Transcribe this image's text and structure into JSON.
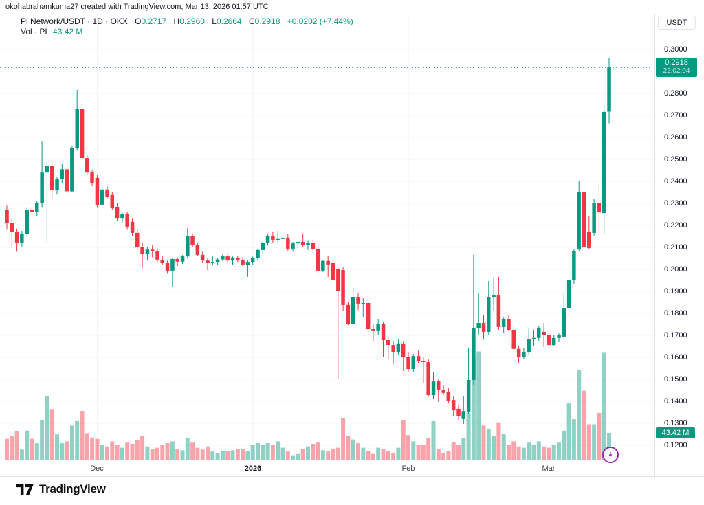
{
  "attribution": "okohabrahamkuma27 created with TradingView.com, Mar 13, 2026 01:57 UTC",
  "legend": {
    "symbol_text": "Pi Network/USDT · 1D · OKX",
    "ohlc": {
      "o_label": "O",
      "o_value": "0.2717",
      "h_label": "H",
      "h_value": "0.2960",
      "l_label": "L",
      "l_value": "0.2664",
      "c_label": "C",
      "c_value": "0.2918",
      "change": "+0.0202 (+7.44%)"
    },
    "volume_row": {
      "label": "Vol · PI",
      "value": "43.42 M"
    }
  },
  "axis": {
    "currency_button": "USDT",
    "price_ticks": [
      "0.3000",
      "0.2800",
      "0.2700",
      "0.2600",
      "0.2500",
      "0.2400",
      "0.2300",
      "0.2200",
      "0.2100",
      "0.2000",
      "0.1900",
      "0.1800",
      "0.1700",
      "0.1600",
      "0.1500",
      "0.1400",
      "0.1300",
      "0.1200"
    ],
    "price_label": {
      "value": "0.2918",
      "countdown": "22:02:04"
    },
    "volume_label": "43.42 M"
  },
  "footer": {
    "logo_text": "TradingView"
  },
  "colors": {
    "up": "#089981",
    "down": "#f23645",
    "vol_up": "rgba(8,153,129,0.45)",
    "vol_down": "rgba(242,54,69,0.45)",
    "grid": "#f0f3fa",
    "badge": "#089981",
    "flash_purple": "#9c27b0"
  },
  "chart_data": {
    "type": "candlestick+volume",
    "symbol": "Pi Network/USDT",
    "interval": "1D",
    "exchange": "OKX",
    "start_date": "2025-11-13",
    "end_date": "2026-03-13",
    "last": {
      "open": 0.2717,
      "high": 0.296,
      "low": 0.2664,
      "close": 0.2918,
      "change_abs": 0.0202,
      "change_pct": 7.44,
      "volume_m": 43.42
    },
    "y_axis": {
      "labeled_min": 0.12,
      "labeled_max": 0.3,
      "gridline_step": 0.01,
      "legend_position": "right",
      "grid": true
    },
    "volume_axis": {
      "unit": "M",
      "last_volume_m": 43.42
    },
    "x_axis": {
      "month_ticks": [
        {
          "label": "Dec",
          "day_index": 18,
          "bold": false
        },
        {
          "label": "2026",
          "day_index": 49,
          "bold": true
        },
        {
          "label": "Feb",
          "day_index": 80,
          "bold": false
        },
        {
          "label": "Mar",
          "day_index": 108,
          "bold": false
        }
      ]
    },
    "candles": [
      [
        0.227,
        0.229,
        0.218,
        0.221
      ],
      [
        0.221,
        0.223,
        0.21,
        0.217
      ],
      [
        0.217,
        0.2185,
        0.208,
        0.212
      ],
      [
        0.212,
        0.2175,
        0.21,
        0.216
      ],
      [
        0.216,
        0.228,
        0.215,
        0.227
      ],
      [
        0.227,
        0.233,
        0.222,
        0.226
      ],
      [
        0.226,
        0.231,
        0.224,
        0.23
      ],
      [
        0.23,
        0.2584,
        0.228,
        0.244
      ],
      [
        0.244,
        0.249,
        0.2125,
        0.247
      ],
      [
        0.247,
        0.2484,
        0.232,
        0.236
      ],
      [
        0.236,
        0.242,
        0.234,
        0.241
      ],
      [
        0.241,
        0.248,
        0.239,
        0.2455
      ],
      [
        0.2455,
        0.2478,
        0.234,
        0.2355
      ],
      [
        0.2355,
        0.256,
        0.235,
        0.255
      ],
      [
        0.255,
        0.2816,
        0.254,
        0.2731
      ],
      [
        0.2731,
        0.2841,
        0.25,
        0.2506
      ],
      [
        0.2506,
        0.252,
        0.243,
        0.244
      ],
      [
        0.244,
        0.245,
        0.238,
        0.2391
      ],
      [
        0.2416,
        0.243,
        0.228,
        0.2294
      ],
      [
        0.2294,
        0.237,
        0.229,
        0.2363
      ],
      [
        0.2363,
        0.238,
        0.232,
        0.2331
      ],
      [
        0.2338,
        0.235,
        0.227,
        0.2278
      ],
      [
        0.2284,
        0.23,
        0.222,
        0.2231
      ],
      [
        0.2231,
        0.226,
        0.221,
        0.225
      ],
      [
        0.225,
        0.226,
        0.218,
        0.2194
      ],
      [
        0.2216,
        0.223,
        0.215,
        0.2166
      ],
      [
        0.2166,
        0.218,
        0.209,
        0.21
      ],
      [
        0.21,
        0.212,
        0.2006,
        0.207
      ],
      [
        0.207,
        0.21,
        0.204,
        0.209
      ],
      [
        0.209,
        0.211,
        0.2055,
        0.2084
      ],
      [
        0.2084,
        0.2095,
        0.2035,
        0.2044
      ],
      [
        0.2044,
        0.206,
        0.202,
        0.2028
      ],
      [
        0.2028,
        0.204,
        0.198,
        0.1991
      ],
      [
        0.1991,
        0.205,
        0.1919,
        0.2047
      ],
      [
        0.2047,
        0.2055,
        0.2015,
        0.2035
      ],
      [
        0.2035,
        0.2065,
        0.2025,
        0.2059
      ],
      [
        0.2059,
        0.2188,
        0.205,
        0.2153
      ],
      [
        0.2153,
        0.216,
        0.21,
        0.211
      ],
      [
        0.211,
        0.212,
        0.206,
        0.2066
      ],
      [
        0.2066,
        0.208,
        0.2028,
        0.204
      ],
      [
        0.204,
        0.205,
        0.1997,
        0.2028
      ],
      [
        0.2028,
        0.206,
        0.2018,
        0.2034
      ],
      [
        0.2034,
        0.2052,
        0.202,
        0.2045
      ],
      [
        0.2045,
        0.207,
        0.2038,
        0.2059
      ],
      [
        0.2059,
        0.2072,
        0.203,
        0.204
      ],
      [
        0.204,
        0.2058,
        0.2022,
        0.2053
      ],
      [
        0.2053,
        0.2062,
        0.203,
        0.2044
      ],
      [
        0.2044,
        0.2056,
        0.2016,
        0.2022
      ],
      [
        0.2022,
        0.2042,
        0.1966,
        0.2031
      ],
      [
        0.2031,
        0.2058,
        0.2022,
        0.205
      ],
      [
        0.205,
        0.2092,
        0.204,
        0.2088
      ],
      [
        0.2088,
        0.2128,
        0.2072,
        0.2122
      ],
      [
        0.2122,
        0.2163,
        0.2108,
        0.2153
      ],
      [
        0.2153,
        0.217,
        0.212,
        0.2131
      ],
      [
        0.2131,
        0.2175,
        0.2118,
        0.2138
      ],
      [
        0.2138,
        0.2216,
        0.2125,
        0.2144
      ],
      [
        0.2144,
        0.216,
        0.2084,
        0.2094
      ],
      [
        0.2094,
        0.2125,
        0.208,
        0.2118
      ],
      [
        0.2118,
        0.214,
        0.2095,
        0.2125
      ],
      [
        0.2125,
        0.2163,
        0.21,
        0.211
      ],
      [
        0.211,
        0.213,
        0.2088,
        0.2122
      ],
      [
        0.2122,
        0.2135,
        0.2075,
        0.2091
      ],
      [
        0.2094,
        0.211,
        0.1975,
        0.1994
      ],
      [
        0.1994,
        0.2042,
        0.1988,
        0.2038
      ],
      [
        0.2038,
        0.206,
        0.1966,
        0.2022
      ],
      [
        0.2028,
        0.2042,
        0.194,
        0.1953
      ],
      [
        0.2,
        0.2013,
        0.1503,
        0.1903
      ],
      [
        0.1997,
        0.2009,
        0.181,
        0.1838
      ],
      [
        0.1838,
        0.1852,
        0.1747,
        0.1753
      ],
      [
        0.1753,
        0.1916,
        0.1748,
        0.1875
      ],
      [
        0.1875,
        0.1894,
        0.1815,
        0.1844
      ],
      [
        0.1844,
        0.1872,
        0.1784,
        0.1847
      ],
      [
        0.1847,
        0.1856,
        0.1706,
        0.1728
      ],
      [
        0.1728,
        0.1752,
        0.1672,
        0.1719
      ],
      [
        0.1719,
        0.1772,
        0.1703,
        0.1753
      ],
      [
        0.1753,
        0.1759,
        0.16,
        0.1678
      ],
      [
        0.1678,
        0.1691,
        0.1594,
        0.1656
      ],
      [
        0.1656,
        0.1672,
        0.1569,
        0.1625
      ],
      [
        0.1625,
        0.1681,
        0.1609,
        0.1663
      ],
      [
        0.1663,
        0.1672,
        0.1538,
        0.16
      ],
      [
        0.16,
        0.1622,
        0.1535,
        0.1547
      ],
      [
        0.1547,
        0.1616,
        0.1531,
        0.1606
      ],
      [
        0.1606,
        0.1631,
        0.1572,
        0.1584
      ],
      [
        0.1584,
        0.16,
        0.1484,
        0.1578
      ],
      [
        0.1578,
        0.1591,
        0.142,
        0.1428
      ],
      [
        0.1428,
        0.1531,
        0.1409,
        0.1491
      ],
      [
        0.1491,
        0.15,
        0.1397,
        0.1453
      ],
      [
        0.1453,
        0.1472,
        0.1428,
        0.1438
      ],
      [
        0.1444,
        0.1459,
        0.1391,
        0.1403
      ],
      [
        0.1406,
        0.1422,
        0.1334,
        0.1359
      ],
      [
        0.1366,
        0.1381,
        0.1313,
        0.1334
      ],
      [
        0.1319,
        0.1422,
        0.1297,
        0.1356
      ],
      [
        0.135,
        0.1644,
        0.1341,
        0.1497
      ],
      [
        0.1497,
        0.2066,
        0.1475,
        0.1734
      ],
      [
        0.1734,
        0.1894,
        0.17,
        0.1756
      ],
      [
        0.1756,
        0.1791,
        0.1681,
        0.1716
      ],
      [
        0.1716,
        0.1947,
        0.1703,
        0.1875
      ],
      [
        0.1875,
        0.1959,
        0.1813,
        0.1881
      ],
      [
        0.1881,
        0.1966,
        0.1725,
        0.1738
      ],
      [
        0.1738,
        0.1781,
        0.1709,
        0.1772
      ],
      [
        0.1772,
        0.1791,
        0.1719,
        0.1725
      ],
      [
        0.1725,
        0.1741,
        0.1631,
        0.1638
      ],
      [
        0.1638,
        0.1653,
        0.1575,
        0.16
      ],
      [
        0.16,
        0.1641,
        0.1591,
        0.1622
      ],
      [
        0.1622,
        0.1731,
        0.1609,
        0.1684
      ],
      [
        0.1684,
        0.1722,
        0.1653,
        0.1688
      ],
      [
        0.1688,
        0.1741,
        0.1672,
        0.1734
      ],
      [
        0.1716,
        0.1756,
        0.1647,
        0.17
      ],
      [
        0.17,
        0.1713,
        0.1641,
        0.1656
      ],
      [
        0.1656,
        0.17,
        0.165,
        0.1688
      ],
      [
        0.1688,
        0.1709,
        0.1669,
        0.17
      ],
      [
        0.1694,
        0.1894,
        0.1681,
        0.1825
      ],
      [
        0.1825,
        0.1963,
        0.1813,
        0.195
      ],
      [
        0.195,
        0.2091,
        0.1931,
        0.2084
      ],
      [
        0.2091,
        0.2403,
        0.2081,
        0.235
      ],
      [
        0.235,
        0.2381,
        0.195,
        0.2103
      ],
      [
        0.2169,
        0.2241,
        0.2091,
        0.2097
      ],
      [
        0.2166,
        0.2322,
        0.215,
        0.23
      ],
      [
        0.23,
        0.2394,
        0.2166,
        0.2259
      ],
      [
        0.2256,
        0.2747,
        0.2159,
        0.2716
      ],
      [
        0.2717,
        0.296,
        0.2664,
        0.2918
      ]
    ],
    "volumes_m": [
      34,
      39,
      46,
      17,
      47,
      34,
      27,
      63,
      101,
      80,
      41,
      27,
      30,
      55,
      62,
      78,
      43,
      36,
      34,
      25,
      22,
      30,
      24,
      20,
      28,
      26,
      32,
      38,
      22,
      18,
      20,
      24,
      27,
      30,
      18,
      16,
      35,
      28,
      20,
      17,
      22,
      14,
      12,
      15,
      15,
      16,
      18,
      18,
      15,
      25,
      27,
      25,
      27,
      25,
      30,
      20,
      14,
      8,
      10,
      18,
      22,
      26,
      28,
      16,
      14,
      18,
      20,
      67,
      39,
      33,
      27,
      20,
      15,
      10,
      20,
      18,
      15,
      12,
      20,
      63,
      40,
      30,
      25,
      25,
      35,
      62,
      18,
      12,
      15,
      29,
      25,
      35,
      75,
      160,
      172,
      55,
      50,
      38,
      60,
      42,
      25,
      30,
      22,
      20,
      28,
      25,
      30,
      22,
      20,
      25,
      28,
      47,
      90,
      65,
      143,
      110,
      57,
      57,
      75,
      170,
      43.42
    ]
  }
}
